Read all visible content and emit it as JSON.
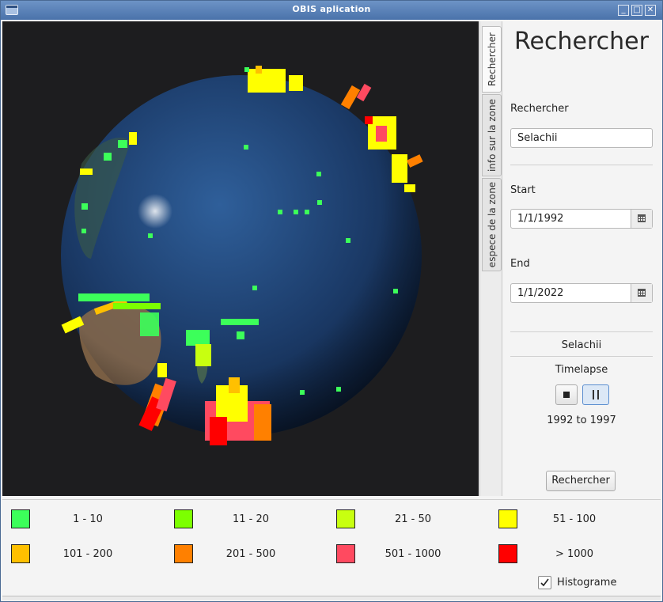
{
  "window": {
    "title": "OBIS aplication",
    "min_symbol": "_",
    "max_symbol": "□",
    "close_symbol": "✕"
  },
  "tabs": [
    {
      "label": "Rechercher",
      "active": true
    },
    {
      "label": "info sur la zone",
      "active": false
    },
    {
      "label": "espece de la zone",
      "active": false
    }
  ],
  "panel": {
    "heading": "Rechercher",
    "search_label": "Rechercher",
    "search_value": "Selachii",
    "start_label": "Start",
    "start_value": "1/1/1992",
    "end_label": "End",
    "end_value": "1/1/2022",
    "species_name": "Selachii",
    "timelapse_label": "Timelapse",
    "period_text": "1992 to 1997",
    "search_button": "Rechercher"
  },
  "legend": [
    {
      "label": "1 - 10",
      "color": "#3cff5a"
    },
    {
      "label": "11 - 20",
      "color": "#7cff00"
    },
    {
      "label": "21 - 50",
      "color": "#c8ff10"
    },
    {
      "label": "51 - 100",
      "color": "#ffff00"
    },
    {
      "label": "101 - 200",
      "color": "#ffc000"
    },
    {
      "label": "201 - 500",
      "color": "#ff8000"
    },
    {
      "label": "501 - 1000",
      "color": "#ff4a60"
    },
    {
      "label": "> 1000",
      "color": "#ff0000"
    }
  ],
  "histogram": {
    "label": "Histograme",
    "checked": true
  }
}
